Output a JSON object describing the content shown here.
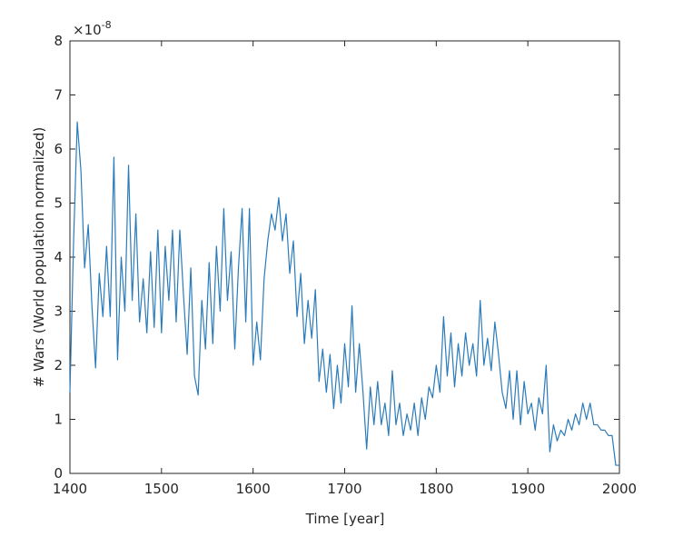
{
  "chart_data": {
    "type": "line",
    "xlabel": "Time [year]",
    "ylabel": "# Wars (World population normalized)",
    "y_multiplier": {
      "base": "×10",
      "exponent": "-8"
    },
    "xlim": [
      1400,
      2000
    ],
    "xticks": [
      1400,
      1500,
      1600,
      1700,
      1800,
      1900,
      2000
    ],
    "ylim": [
      0,
      8
    ],
    "yticks": [
      0,
      1,
      2,
      3,
      4,
      5,
      6,
      7,
      8
    ],
    "grid": false,
    "x": [
      1400,
      1404,
      1408,
      1412,
      1416,
      1420,
      1424,
      1428,
      1432,
      1436,
      1440,
      1444,
      1448,
      1452,
      1456,
      1460,
      1464,
      1468,
      1472,
      1476,
      1480,
      1484,
      1488,
      1492,
      1496,
      1500,
      1504,
      1508,
      1512,
      1516,
      1520,
      1524,
      1528,
      1532,
      1536,
      1540,
      1544,
      1548,
      1552,
      1556,
      1560,
      1564,
      1568,
      1572,
      1576,
      1580,
      1584,
      1588,
      1592,
      1596,
      1600,
      1604,
      1608,
      1612,
      1616,
      1620,
      1624,
      1628,
      1632,
      1636,
      1640,
      1644,
      1648,
      1652,
      1656,
      1660,
      1664,
      1668,
      1672,
      1676,
      1680,
      1684,
      1688,
      1692,
      1696,
      1700,
      1704,
      1708,
      1712,
      1716,
      1720,
      1724,
      1728,
      1732,
      1736,
      1740,
      1744,
      1748,
      1752,
      1756,
      1760,
      1764,
      1768,
      1772,
      1776,
      1780,
      1784,
      1788,
      1792,
      1796,
      1800,
      1804,
      1808,
      1812,
      1816,
      1820,
      1824,
      1828,
      1832,
      1836,
      1840,
      1844,
      1848,
      1852,
      1856,
      1860,
      1864,
      1868,
      1872,
      1876,
      1880,
      1884,
      1888,
      1892,
      1896,
      1900,
      1904,
      1908,
      1912,
      1916,
      1920,
      1924,
      1928,
      1932,
      1936,
      1940,
      1944,
      1948,
      1952,
      1956,
      1960,
      1964,
      1968,
      1972,
      1976,
      1980,
      1984,
      1988,
      1992,
      1996,
      2000
    ],
    "series": [
      {
        "color": "#2b7bba",
        "values": [
          1.5,
          4.3,
          6.5,
          5.6,
          3.8,
          4.6,
          3.1,
          1.95,
          3.7,
          2.9,
          4.2,
          2.9,
          5.85,
          2.1,
          4.0,
          3.0,
          5.7,
          3.2,
          4.8,
          2.8,
          3.6,
          2.6,
          4.1,
          2.7,
          4.5,
          2.6,
          4.2,
          3.2,
          4.5,
          2.8,
          4.5,
          3.3,
          2.2,
          3.8,
          1.8,
          1.45,
          3.2,
          2.3,
          3.9,
          2.4,
          4.2,
          3.0,
          4.9,
          3.2,
          4.1,
          2.3,
          3.8,
          4.9,
          2.8,
          4.9,
          2.0,
          2.8,
          2.1,
          3.6,
          4.3,
          4.8,
          4.5,
          5.1,
          4.3,
          4.8,
          3.7,
          4.3,
          2.9,
          3.7,
          2.4,
          3.2,
          2.5,
          3.4,
          1.7,
          2.3,
          1.5,
          2.2,
          1.2,
          2.0,
          1.3,
          2.4,
          1.6,
          3.1,
          1.5,
          2.4,
          1.5,
          0.45,
          1.6,
          0.9,
          1.7,
          0.9,
          1.3,
          0.7,
          1.9,
          0.9,
          1.3,
          0.7,
          1.1,
          0.8,
          1.3,
          0.7,
          1.4,
          1.0,
          1.6,
          1.4,
          2.0,
          1.5,
          2.9,
          1.8,
          2.6,
          1.6,
          2.4,
          1.8,
          2.6,
          2.0,
          2.4,
          1.8,
          3.2,
          2.0,
          2.5,
          1.9,
          2.8,
          2.2,
          1.5,
          1.2,
          1.9,
          1.0,
          1.9,
          0.9,
          1.7,
          1.1,
          1.3,
          0.8,
          1.4,
          1.1,
          2.0,
          0.4,
          0.9,
          0.6,
          0.8,
          0.7,
          1.0,
          0.8,
          1.1,
          0.9,
          1.3,
          1.0,
          1.3,
          0.9,
          0.9,
          0.8,
          0.8,
          0.7,
          0.7,
          0.15,
          0.15
        ]
      }
    ]
  }
}
